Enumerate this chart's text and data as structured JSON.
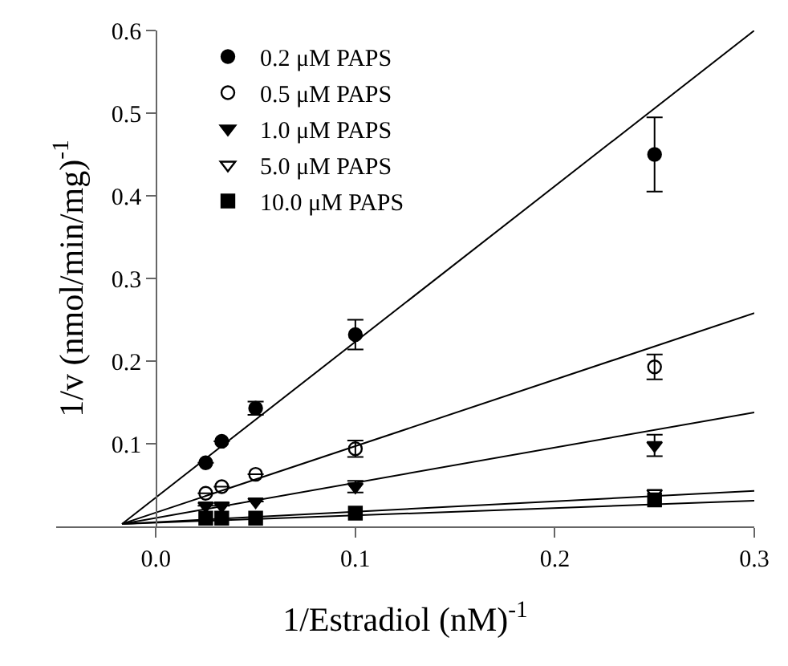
{
  "chart_data": {
    "type": "scatter",
    "xlabel": "1/Estradiol (nM)$^{-1}$",
    "ylabel": "1/v (nmol/min/mg)$^{-1}$",
    "xlim": [
      -0.05,
      0.3
    ],
    "xticks": [
      {
        "value": 0.0,
        "label": "0.0"
      },
      0.1,
      0.2,
      0.3
    ],
    "ylim": [
      0,
      0.6
    ],
    "yticks": [
      0.1,
      0.2,
      0.3,
      0.4,
      0.5,
      0.6
    ],
    "legend": "top left",
    "series": [
      {
        "name": "0.2 μM PAPS",
        "color": "#000000",
        "marker": "circle",
        "x": [
          0.025,
          0.033,
          0.05,
          0.1,
          0.25
        ],
        "values": [
          0.077,
          0.103,
          0.143,
          0.232,
          0.45
        ],
        "errors": [
          null,
          null,
          0.008,
          0.018,
          0.045
        ]
      },
      {
        "name": "0.5 μM PAPS",
        "color": "#000000",
        "marker": "circle-open",
        "x": [
          0.025,
          0.033,
          0.05,
          0.1,
          0.25
        ],
        "values": [
          0.04,
          0.048,
          0.063,
          0.094,
          0.193
        ],
        "errors": [
          null,
          null,
          null,
          0.01,
          0.015
        ]
      },
      {
        "name": "1.0 μM PAPS",
        "color": "#000000",
        "marker": "triangle-down",
        "x": [
          0.025,
          0.033,
          0.05,
          0.1,
          0.25
        ],
        "values": [
          0.025,
          0.025,
          0.03,
          0.048,
          0.098
        ],
        "errors": [
          null,
          null,
          null,
          0.007,
          0.013
        ]
      },
      {
        "name": "5.0 μM PAPS",
        "color": "#000000",
        "marker": "triangle-down-open",
        "x": [
          0.25
        ],
        "values": [
          0.04
        ],
        "errors": [
          null
        ]
      },
      {
        "name": "10.0 μM PAPS",
        "color": "#000000",
        "marker": "square",
        "x": [
          0.025,
          0.033,
          0.05,
          0.1,
          0.25
        ],
        "values": [
          0.01,
          0.01,
          0.01,
          0.016,
          0.032
        ],
        "errors": [
          null,
          null,
          null,
          null,
          null
        ]
      },
      {
        "type": "line",
        "color": "#000000",
        "marker": "none",
        "x": [
          -0.017,
          0.3
        ],
        "values": [
          0.003,
          0.6
        ]
      },
      {
        "type": "line",
        "color": "#000000",
        "marker": "none",
        "x": [
          -0.017,
          0.3
        ],
        "values": [
          0.003,
          0.258
        ]
      },
      {
        "type": "line",
        "color": "#000000",
        "marker": "none",
        "x": [
          -0.017,
          0.3
        ],
        "values": [
          0.003,
          0.138
        ]
      },
      {
        "type": "line",
        "color": "#000000",
        "marker": "none",
        "x": [
          -0.017,
          0.3
        ],
        "values": [
          0.003,
          0.043
        ]
      },
      {
        "type": "line",
        "color": "#000000",
        "marker": "none",
        "x": [
          -0.017,
          0.3
        ],
        "values": [
          0.003,
          0.031
        ]
      }
    ]
  }
}
